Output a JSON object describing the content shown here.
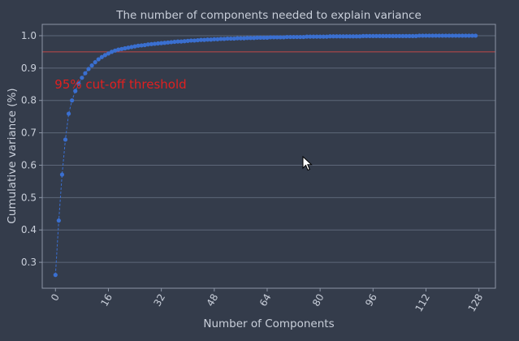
{
  "chart_data": {
    "type": "line",
    "title": "The number of components needed to explain variance",
    "xlabel": "Number of Components",
    "ylabel": "Cumulative variance (%)",
    "xlim": [
      -4,
      133
    ],
    "ylim": [
      0.22,
      1.035
    ],
    "x_ticks": [
      0,
      16,
      32,
      48,
      64,
      80,
      96,
      112,
      128
    ],
    "y_ticks": [
      0.3,
      0.4,
      0.5,
      0.6,
      0.7,
      0.8,
      0.9,
      1.0
    ],
    "y_tick_labels": [
      "0.3",
      "0.4",
      "0.5",
      "0.6",
      "0.7",
      "0.8",
      "0.9",
      "1.0"
    ],
    "grid": "horizontal",
    "threshold": {
      "y": 0.95,
      "label": "95% cut-off threshold",
      "color": "#e02020"
    },
    "series_color": "#3a6fd0",
    "series": [
      {
        "x_start": 0,
        "x_step": 1,
        "values": [
          0.261,
          0.429,
          0.571,
          0.679,
          0.759,
          0.8,
          0.829,
          0.852,
          0.87,
          0.884,
          0.897,
          0.908,
          0.918,
          0.927,
          0.934,
          0.94,
          0.945,
          0.95,
          0.954,
          0.957,
          0.959,
          0.961,
          0.963,
          0.965,
          0.967,
          0.969,
          0.97,
          0.971,
          0.973,
          0.974,
          0.975,
          0.976,
          0.977,
          0.978,
          0.979,
          0.98,
          0.981,
          0.982,
          0.982,
          0.983,
          0.984,
          0.985,
          0.985,
          0.986,
          0.987,
          0.987,
          0.988,
          0.988,
          0.989,
          0.989,
          0.99,
          0.99,
          0.991,
          0.991,
          0.991,
          0.992,
          0.992,
          0.992,
          0.993,
          0.993,
          0.993,
          0.994,
          0.994,
          0.994,
          0.994,
          0.995,
          0.995,
          0.995,
          0.995,
          0.995,
          0.996,
          0.996,
          0.996,
          0.996,
          0.996,
          0.996,
          0.997,
          0.997,
          0.997,
          0.997,
          0.997,
          0.997,
          0.997,
          0.998,
          0.998,
          0.998,
          0.998,
          0.998,
          0.998,
          0.998,
          0.998,
          0.998,
          0.998,
          0.999,
          0.999,
          0.999,
          0.999,
          0.999,
          0.999,
          0.999,
          0.999,
          0.999,
          0.999,
          0.999,
          0.999,
          0.999,
          0.999,
          0.999,
          0.999,
          0.999,
          1.0,
          1.0,
          1.0,
          1.0,
          1.0,
          1.0,
          1.0,
          1.0,
          1.0,
          1.0,
          1.0,
          1.0,
          1.0,
          1.0,
          1.0,
          1.0,
          1.0,
          1.0
        ]
      }
    ]
  },
  "icons": {
    "cursor": "mouse-pointer-icon"
  }
}
